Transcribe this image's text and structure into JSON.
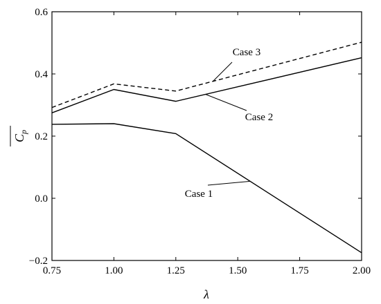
{
  "chart_data": {
    "type": "line",
    "title": "",
    "xlabel": "λ",
    "ylabel": "C",
    "ylabel_subscript": "p",
    "xlim": [
      0.75,
      2.0
    ],
    "ylim": [
      -0.2,
      0.6
    ],
    "xticks": [
      0.75,
      1.0,
      1.25,
      1.5,
      1.75,
      2.0
    ],
    "xtick_labels": [
      "0.75",
      "1.00",
      "1.25",
      "1.50",
      "1.75",
      "2.00"
    ],
    "yticks": [
      -0.2,
      0.0,
      0.2,
      0.4,
      0.6
    ],
    "ytick_labels": [
      "−0.2",
      "0.0",
      "0.2",
      "0.4",
      "0.6"
    ],
    "grid": false,
    "x": [
      0.75,
      1.0,
      1.25,
      2.0
    ],
    "series": [
      {
        "name": "Case 1",
        "values": [
          0.238,
          0.24,
          0.208,
          -0.175
        ],
        "style": "solid"
      },
      {
        "name": "Case 2",
        "values": [
          0.275,
          0.35,
          0.312,
          0.452
        ],
        "style": "solid"
      },
      {
        "name": "Case 3",
        "values": [
          0.292,
          0.368,
          0.345,
          0.502
        ],
        "style": "dashed"
      }
    ],
    "annotations": [
      {
        "text": "Case 1",
        "series": 0
      },
      {
        "text": "Case 2",
        "series": 1
      },
      {
        "text": "Case 3",
        "series": 2
      }
    ]
  }
}
